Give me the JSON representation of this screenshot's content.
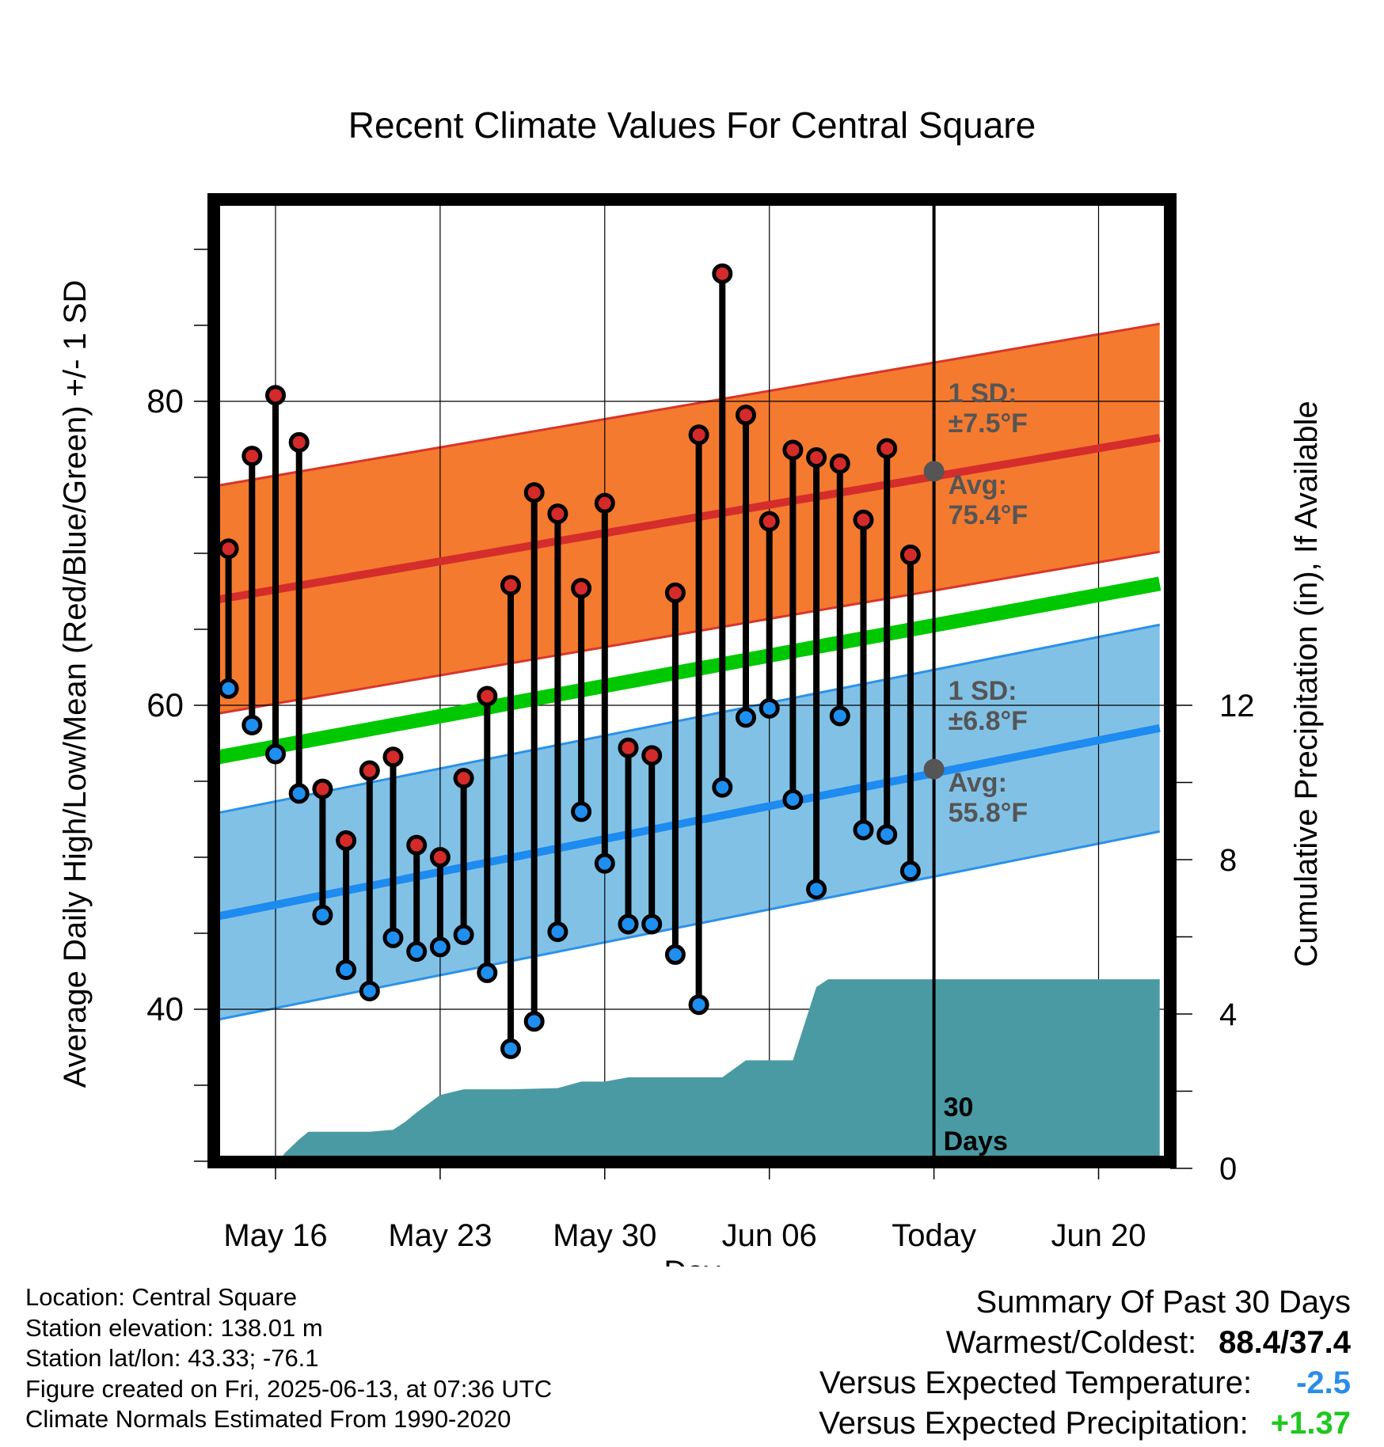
{
  "chart_data": {
    "type": "line",
    "title": "Recent Climate Values For Central Square",
    "xlabel": "Day",
    "ylabel_left": "Average Daily High/Low/Mean (Red/Blue/Green) +/- 1 SD",
    "ylabel_right": "Cumulative Precipitation (in), If Available",
    "x_ticks": [
      {
        "day": 16,
        "label": "May 16"
      },
      {
        "day": 23,
        "label": "May 23"
      },
      {
        "day": 30,
        "label": "May 30"
      },
      {
        "day": 37,
        "label": "Jun 06"
      },
      {
        "day": 44,
        "label": "Today"
      },
      {
        "day": 51,
        "label": "Jun 20"
      }
    ],
    "xlim": [
      12.2,
      53.6
    ],
    "temp_ylim": [
      30,
      93.5
    ],
    "temp_ticks": [
      40,
      60,
      80
    ],
    "precip_ticks": [
      0,
      4,
      8,
      12
    ],
    "precip_ylim": [
      0,
      25.4
    ],
    "today_day": 44,
    "today_label": [
      "30",
      "Days"
    ],
    "normal_high": {
      "start": 66.6,
      "end": 77.6,
      "sd_label": "1 SD:",
      "sd_value": "±7.5°F",
      "avg_label": "Avg:",
      "avg_value": "75.4°F",
      "today_value": 75.4,
      "sd": 7.5
    },
    "normal_low": {
      "start": 45.7,
      "end": 58.5,
      "sd_label": "1 SD:",
      "sd_value": "±6.8°F",
      "avg_label": "Avg:",
      "avg_value": "55.8°F",
      "today_value": 55.8,
      "sd": 6.8
    },
    "normal_mean": {
      "start": 56.2,
      "end": 68.0
    },
    "daily": [
      {
        "day": 14,
        "high": 70.3,
        "low": 61.1
      },
      {
        "day": 15,
        "high": 76.4,
        "low": 58.7
      },
      {
        "day": 16,
        "high": 80.4,
        "low": 56.8
      },
      {
        "day": 17,
        "high": 77.3,
        "low": 54.2
      },
      {
        "day": 18,
        "high": 54.5,
        "low": 46.2
      },
      {
        "day": 19,
        "high": 51.1,
        "low": 42.6
      },
      {
        "day": 20,
        "high": 55.7,
        "low": 41.2
      },
      {
        "day": 21,
        "high": 56.6,
        "low": 44.7
      },
      {
        "day": 22,
        "high": 50.8,
        "low": 43.8
      },
      {
        "day": 23,
        "high": 50.0,
        "low": 44.1
      },
      {
        "day": 24,
        "high": 55.2,
        "low": 44.9
      },
      {
        "day": 25,
        "high": 60.6,
        "low": 42.4
      },
      {
        "day": 26,
        "high": 67.9,
        "low": 37.4
      },
      {
        "day": 27,
        "high": 74.0,
        "low": 39.2
      },
      {
        "day": 28,
        "high": 72.6,
        "low": 45.1
      },
      {
        "day": 29,
        "high": 67.7,
        "low": 53.0
      },
      {
        "day": 30,
        "high": 73.3,
        "low": 49.6
      },
      {
        "day": 31,
        "high": 57.2,
        "low": 45.6
      },
      {
        "day": 32,
        "high": 56.7,
        "low": 45.6
      },
      {
        "day": 33,
        "high": 67.4,
        "low": 43.6
      },
      {
        "day": 34,
        "high": 77.8,
        "low": 40.3
      },
      {
        "day": 35,
        "high": 88.4,
        "low": 54.6
      },
      {
        "day": 36,
        "high": 79.1,
        "low": 59.2
      },
      {
        "day": 37,
        "high": 72.1,
        "low": 59.8
      },
      {
        "day": 38,
        "high": 76.8,
        "low": 53.8
      },
      {
        "day": 39,
        "high": 76.3,
        "low": 47.9
      },
      {
        "day": 40,
        "high": 75.9,
        "low": 59.3
      },
      {
        "day": 41,
        "high": 72.2,
        "low": 51.8
      },
      {
        "day": 42,
        "high": 76.9,
        "low": 51.5
      },
      {
        "day": 43,
        "high": 69.9,
        "low": 49.1
      }
    ],
    "precip_cumulative": [
      {
        "day": 15.9,
        "value": 0
      },
      {
        "day": 16.4,
        "value": 0.4
      },
      {
        "day": 17.0,
        "value": 0.75
      },
      {
        "day": 17.4,
        "value": 0.95
      },
      {
        "day": 18.0,
        "value": 0.95
      },
      {
        "day": 20.0,
        "value": 0.95
      },
      {
        "day": 21.0,
        "value": 1.0
      },
      {
        "day": 21.5,
        "value": 1.2
      },
      {
        "day": 22.0,
        "value": 1.45
      },
      {
        "day": 23.0,
        "value": 1.9
      },
      {
        "day": 24.0,
        "value": 2.05
      },
      {
        "day": 26.0,
        "value": 2.05
      },
      {
        "day": 28.0,
        "value": 2.08
      },
      {
        "day": 29.0,
        "value": 2.25
      },
      {
        "day": 30.0,
        "value": 2.25
      },
      {
        "day": 31.0,
        "value": 2.36
      },
      {
        "day": 35.0,
        "value": 2.36
      },
      {
        "day": 36.0,
        "value": 2.8
      },
      {
        "day": 38.0,
        "value": 2.8
      },
      {
        "day": 39.0,
        "value": 4.7
      },
      {
        "day": 39.5,
        "value": 4.9
      },
      {
        "day": 40.0,
        "value": 4.9
      },
      {
        "day": 53.6,
        "value": 4.9
      }
    ],
    "colors": {
      "high_band": "#f47a2f",
      "high_edge": "#d9352a",
      "high_line": "#d42d2b",
      "low_band": "#82c1e6",
      "low_edge": "#2c91e8",
      "low_line": "#1e8bf0",
      "mean_line": "#00c800",
      "precip": "#4a9aa3",
      "high_dot": "#d42a2a",
      "low_dot": "#1e8ff0",
      "annot": "#555555"
    }
  },
  "footer": {
    "location": "Location: Central Square",
    "elevation": "Station elevation: 138.01 m",
    "latlon": "Station lat/lon: 43.33; -76.1",
    "created": "Figure created on Fri, 2025-06-13, at 07:36 UTC",
    "normals": "Climate Normals Estimated From 1990-2020"
  },
  "summary": {
    "title": "Summary Of Past 30 Days",
    "warm_cold_label": "Warmest/Coldest:",
    "warm_cold_value": "88.4/37.4",
    "temp_label": "Versus Expected Temperature:",
    "temp_value": "-2.5",
    "temp_color": "#2a8de8",
    "precip_label": "Versus Expected Precipitation:",
    "precip_value": "+1.37",
    "precip_color": "#1ec81e"
  }
}
